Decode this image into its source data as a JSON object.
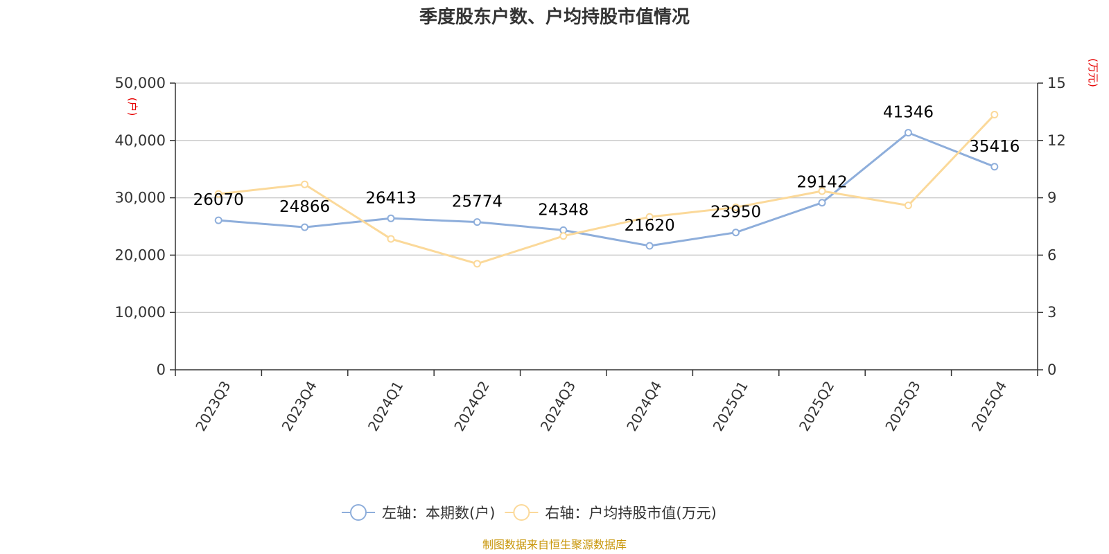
{
  "chart_data": {
    "type": "line",
    "title": "季度股东户数、户均持股市值情况",
    "categories": [
      "2023Q3",
      "2023Q4",
      "2024Q1",
      "2024Q2",
      "2024Q3",
      "2024Q4",
      "2025Q1",
      "2025Q2",
      "2025Q3",
      "2025Q4"
    ],
    "left_axis": {
      "unit": "(户)",
      "min": 0,
      "max": 50000,
      "ticks": [
        "0",
        "10,000",
        "20,000",
        "30,000",
        "40,000",
        "50,000"
      ]
    },
    "right_axis": {
      "unit": "(万元)",
      "min": 0,
      "max": 15,
      "ticks": [
        "0",
        "3",
        "6",
        "9",
        "12",
        "15"
      ]
    },
    "series": [
      {
        "name": "左轴：本期数(户)",
        "axis": "left",
        "color": "#8eaedb",
        "values": [
          26070,
          24866,
          26413,
          25774,
          24348,
          21620,
          23950,
          29142,
          41346,
          35416
        ],
        "labels": [
          "26070",
          "24866",
          "26413",
          "25774",
          "24348",
          "21620",
          "23950",
          "29142",
          "41346",
          "35416"
        ]
      },
      {
        "name": "右轴：户均持股市值(万元)",
        "axis": "right",
        "color": "#fbd99a",
        "values": [
          9.2,
          9.7,
          6.85,
          5.55,
          7.0,
          8.0,
          8.5,
          9.35,
          8.6,
          13.35
        ]
      }
    ],
    "grid": true,
    "legend_position": "bottom-center"
  },
  "source": "制图数据来自恒生聚源数据库"
}
